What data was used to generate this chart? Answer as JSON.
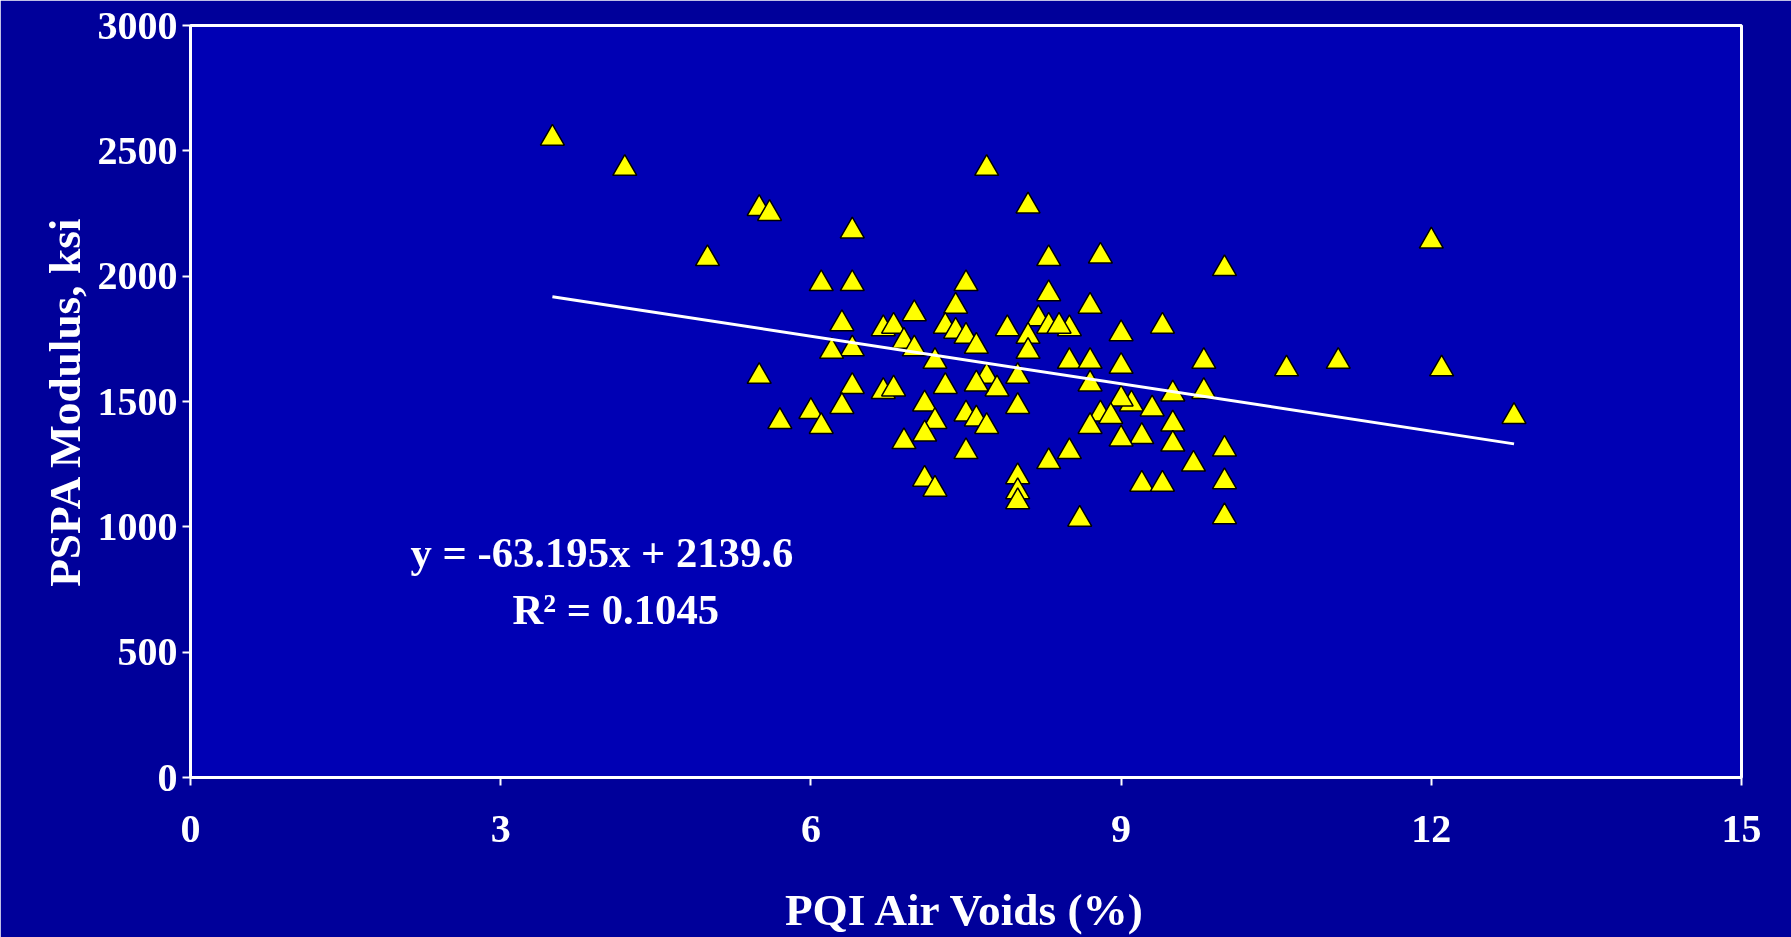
{
  "chart_data": {
    "type": "scatter",
    "xlabel": "PQI Air Voids (%)",
    "ylabel": "PSPA Modulus, ksi",
    "xlim": [
      0,
      15
    ],
    "xticks": [
      0,
      3,
      6,
      9,
      12,
      15
    ],
    "ylim": [
      0,
      3000
    ],
    "yticks": [
      0,
      500,
      1000,
      1500,
      2000,
      2500,
      3000
    ],
    "grid": false,
    "annotations": [
      "y = -63.195x + 2139.6",
      "R² = 0.1045"
    ],
    "series": [
      {
        "marker": "triangle",
        "color": "#ffff00",
        "x": [
          3.5,
          4.2,
          7.7,
          5.5,
          5.6,
          8.1,
          6.4,
          12.0,
          5.0,
          8.3,
          8.8,
          10.0,
          6.1,
          6.4,
          7.5,
          8.3,
          8.7,
          7.4,
          6.3,
          9.4,
          7.0,
          6.7,
          6.8,
          7.3,
          7.4,
          7.5,
          7.9,
          8.5,
          8.2,
          8.3,
          8.4,
          8.1,
          9.0,
          6.9,
          7.0,
          6.4,
          6.2,
          7.6,
          8.1,
          7.2,
          8.5,
          8.7,
          9.0,
          9.8,
          11.1,
          10.6,
          12.1,
          5.5,
          8.0,
          7.7,
          7.8,
          7.6,
          7.3,
          6.4,
          6.7,
          6.8,
          8.7,
          9.5,
          9.8,
          7.1,
          6.3,
          6.0,
          8.0,
          9.1,
          9.3,
          9.0,
          8.8,
          8.9,
          7.5,
          7.6,
          7.2,
          12.8,
          5.7,
          6.1,
          7.7,
          8.7,
          9.5,
          7.1,
          9.2,
          9.0,
          6.9,
          9.5,
          10.0,
          7.5,
          8.5,
          8.3,
          9.7,
          8.0,
          7.1,
          10.0,
          7.2,
          9.2,
          9.4,
          8.0,
          8.0,
          8.6,
          10.0
        ],
        "values": [
          2550,
          2430,
          2430,
          2270,
          2250,
          2280,
          2180,
          2140,
          2070,
          2070,
          2080,
          2030,
          1970,
          1970,
          1970,
          1930,
          1880,
          1880,
          1810,
          1800,
          1850,
          1790,
          1800,
          1800,
          1780,
          1760,
          1790,
          1790,
          1830,
          1800,
          1800,
          1760,
          1770,
          1740,
          1710,
          1710,
          1700,
          1720,
          1700,
          1660,
          1660,
          1660,
          1640,
          1660,
          1660,
          1630,
          1630,
          1600,
          1600,
          1600,
          1550,
          1570,
          1560,
          1560,
          1540,
          1550,
          1570,
          1530,
          1540,
          1490,
          1480,
          1460,
          1480,
          1490,
          1470,
          1510,
          1450,
          1440,
          1450,
          1430,
          1420,
          1440,
          1420,
          1400,
          1400,
          1400,
          1410,
          1370,
          1360,
          1350,
          1340,
          1330,
          1310,
          1300,
          1300,
          1260,
          1250,
          1200,
          1190,
          1180,
          1150,
          1170,
          1170,
          1140,
          1100,
          1030,
          1040
        ]
      },
      {
        "type": "line",
        "color": "#ffffff",
        "x": [
          3.5,
          12.8
        ],
        "values": [
          1918,
          1331
        ]
      }
    ]
  }
}
